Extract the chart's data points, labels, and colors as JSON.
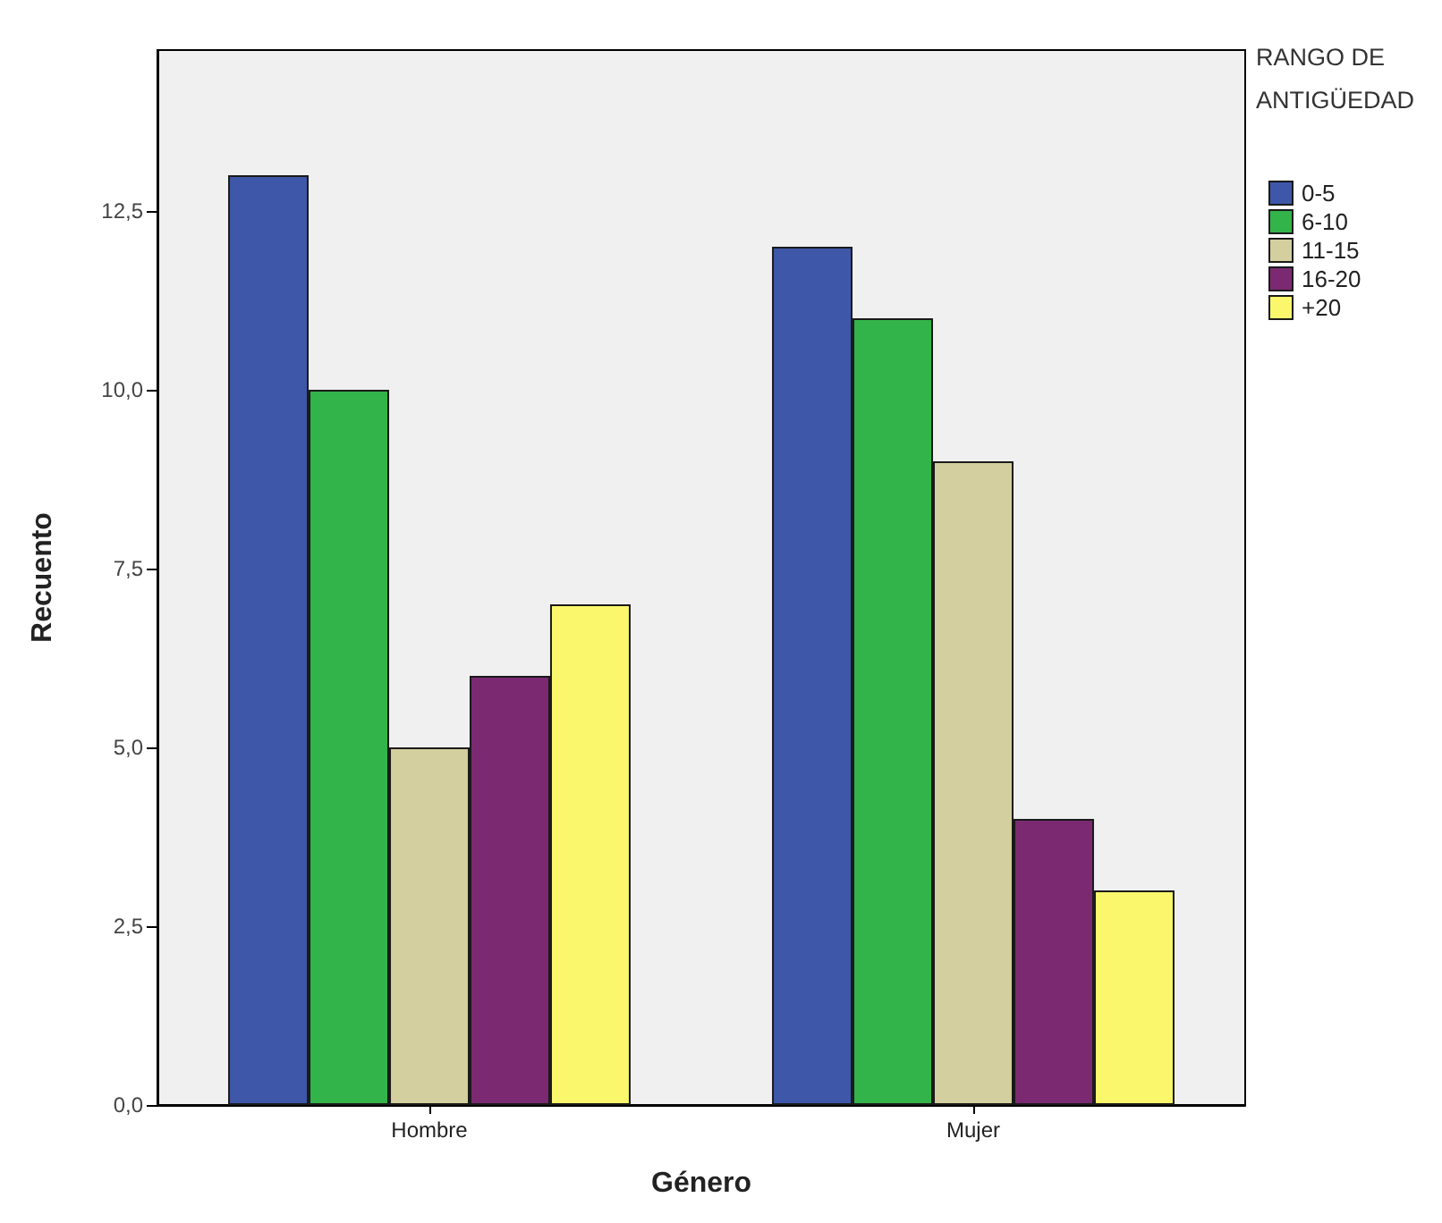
{
  "chart_data": {
    "type": "bar",
    "xlabel": "Género",
    "ylabel": "Recuento",
    "legend_title": "RANGO DE ANTIGÜEDAD",
    "categories": [
      "Hombre",
      "Mujer"
    ],
    "series": [
      {
        "name": "0-5",
        "color": "#3e57a8",
        "values": [
          13,
          12
        ]
      },
      {
        "name": "6-10",
        "color": "#33b44a",
        "values": [
          10,
          11
        ]
      },
      {
        "name": "11-15",
        "color": "#d3cf9e",
        "values": [
          5,
          9
        ]
      },
      {
        "name": "16-20",
        "color": "#7b2a72",
        "values": [
          6,
          4
        ]
      },
      {
        "name": "+20",
        "color": "#fbf76c",
        "values": [
          7,
          3
        ]
      }
    ],
    "ylim": [
      0,
      14.75
    ],
    "yticks": [
      {
        "value": 0,
        "label": "0,0"
      },
      {
        "value": 2.5,
        "label": "2,5"
      },
      {
        "value": 5,
        "label": "5,0"
      },
      {
        "value": 7.5,
        "label": "7,5"
      },
      {
        "value": 10,
        "label": "10,0"
      },
      {
        "value": 12.5,
        "label": "12,5"
      }
    ],
    "grid": false,
    "legend": "top right"
  }
}
